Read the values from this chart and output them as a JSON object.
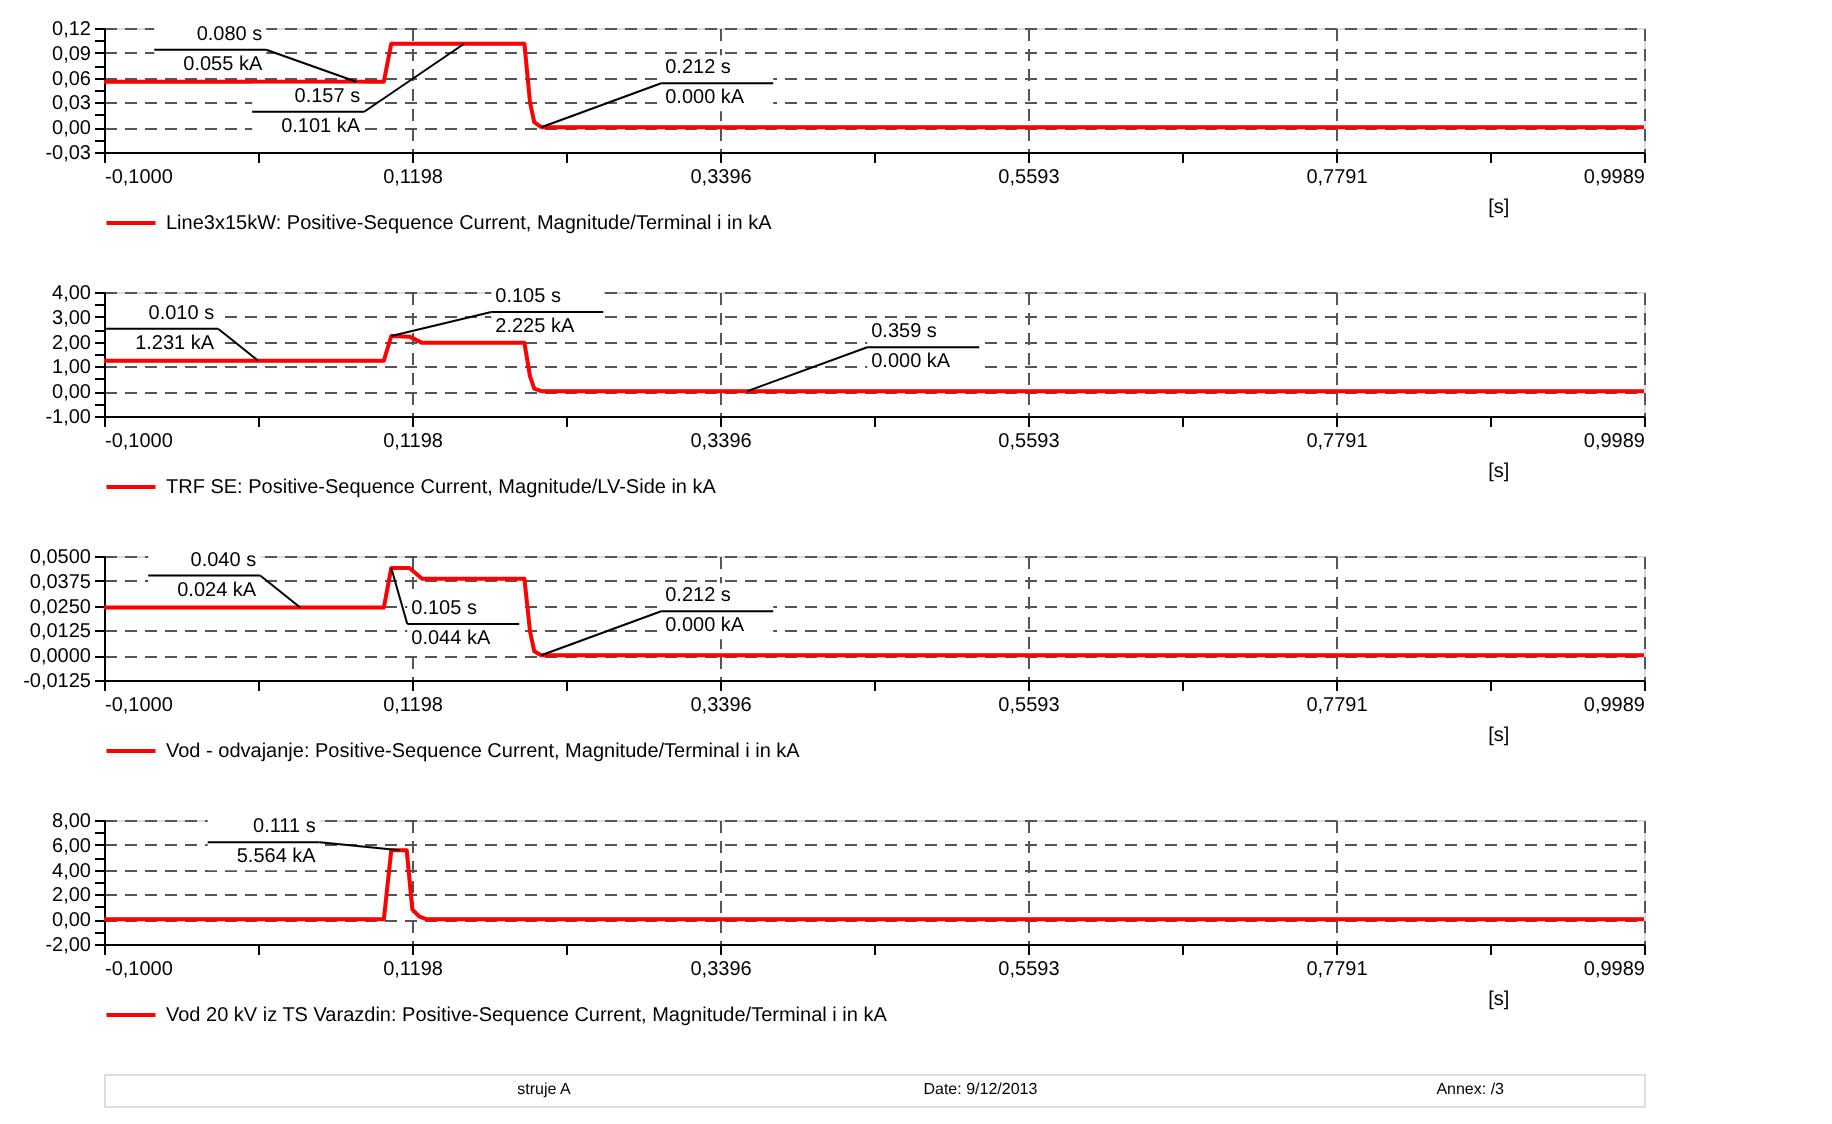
{
  "chart_data": [
    {
      "type": "line",
      "x": [
        -0.1,
        0.0997,
        0.105,
        0.2,
        0.204,
        0.207,
        0.212,
        0.9989
      ],
      "series": [
        {
          "name": "Line3x15kW: Positive-Sequence Current, Magnitude/Terminal i in kA",
          "color": "#ff0000",
          "values": [
            0.055,
            0.055,
            0.101,
            0.101,
            0.03,
            0.006,
            0,
            0
          ]
        }
      ],
      "xlabel": "[s]",
      "xlim": [
        -0.1,
        0.9989
      ],
      "xticks": [
        {
          "value": -0.1,
          "label": "-0,1000"
        },
        {
          "value": 0.0099,
          "label": null
        },
        {
          "value": 0.1198,
          "label": "0,1198"
        },
        {
          "value": 0.2297,
          "label": null
        },
        {
          "value": 0.3396,
          "label": "0,3396"
        },
        {
          "value": 0.44945,
          "label": null
        },
        {
          "value": 0.5593,
          "label": "0,5593"
        },
        {
          "value": 0.6692,
          "label": null
        },
        {
          "value": 0.7791,
          "label": "0,7791"
        },
        {
          "value": 0.889,
          "label": null
        },
        {
          "value": 0.9989,
          "label": "0,9989"
        }
      ],
      "ylim": [
        -0.03,
        0.12
      ],
      "yticks": [
        {
          "value": -0.03,
          "label": "-0,03"
        },
        {
          "value": -0.015,
          "label": null
        },
        {
          "value": 0,
          "label": "0,00"
        },
        {
          "value": 0.015,
          "label": null
        },
        {
          "value": 0.03,
          "label": "0,03"
        },
        {
          "value": 0.045,
          "label": null
        },
        {
          "value": 0.06,
          "label": "0,06"
        },
        {
          "value": 0.075,
          "label": null
        },
        {
          "value": 0.09,
          "label": "0,09"
        },
        {
          "value": 0.105,
          "label": null
        },
        {
          "value": 0.12,
          "label": "0,12"
        }
      ],
      "annotations": [
        {
          "text": "0.080 s\n0.055 kA",
          "x": 0.08,
          "y": 0.055
        },
        {
          "text": "0.157 s\n0.101 kA",
          "x": 0.157,
          "y": 0.101
        },
        {
          "text": "0.212 s\n0.000 kA",
          "x": 0.212,
          "y": 0
        }
      ],
      "grid": true,
      "legend": "bottom left",
      "line_style": "solid"
    },
    {
      "type": "line",
      "x": [
        -0.1,
        0.0997,
        0.105,
        0.118,
        0.127,
        0.2,
        0.204,
        0.207,
        0.212,
        0.9989
      ],
      "series": [
        {
          "name": "TRF SE: Positive-Sequence Current, Magnitude/LV-Side in kA",
          "color": "#ff0000",
          "values": [
            1.231,
            1.231,
            2.225,
            2.2,
            1.95,
            1.95,
            0.6,
            0.1,
            0,
            0
          ]
        }
      ],
      "xlabel": "[s]",
      "xlim": [
        -0.1,
        0.9989
      ],
      "xticks": [
        {
          "value": -0.1,
          "label": "-0,1000"
        },
        {
          "value": 0.0099,
          "label": null
        },
        {
          "value": 0.1198,
          "label": "0,1198"
        },
        {
          "value": 0.2297,
          "label": null
        },
        {
          "value": 0.3396,
          "label": "0,3396"
        },
        {
          "value": 0.44945,
          "label": null
        },
        {
          "value": 0.5593,
          "label": "0,5593"
        },
        {
          "value": 0.6692,
          "label": null
        },
        {
          "value": 0.7791,
          "label": "0,7791"
        },
        {
          "value": 0.889,
          "label": null
        },
        {
          "value": 0.9989,
          "label": "0,9989"
        }
      ],
      "ylim": [
        -1,
        4
      ],
      "yticks": [
        {
          "value": -1,
          "label": "-1,00"
        },
        {
          "value": -0.5,
          "label": null
        },
        {
          "value": 0,
          "label": "0,00"
        },
        {
          "value": 0.5,
          "label": null
        },
        {
          "value": 1,
          "label": "1,00"
        },
        {
          "value": 1.5,
          "label": null
        },
        {
          "value": 2,
          "label": "2,00"
        },
        {
          "value": 2.5,
          "label": null
        },
        {
          "value": 3,
          "label": "3,00"
        },
        {
          "value": 3.5,
          "label": null
        },
        {
          "value": 4,
          "label": "4,00"
        }
      ],
      "annotations": [
        {
          "text": "0.010 s\n1.231 kA",
          "x": 0.01,
          "y": 1.231
        },
        {
          "text": "0.105 s\n2.225 kA",
          "x": 0.105,
          "y": 2.225
        },
        {
          "text": "0.359 s\n0.000 kA",
          "x": 0.359,
          "y": 0
        }
      ],
      "grid": true,
      "legend": "bottom left",
      "line_style": "solid"
    },
    {
      "type": "line",
      "x": [
        -0.1,
        0.0997,
        0.105,
        0.118,
        0.127,
        0.2,
        0.204,
        0.207,
        0.212,
        0.9989
      ],
      "series": [
        {
          "name": "Vod - odvajanje: Positive-Sequence Current, Magnitude/Terminal i in kA",
          "color": "#ff0000",
          "values": [
            0.024,
            0.024,
            0.044,
            0.044,
            0.0385,
            0.0385,
            0.012,
            0.002,
            0,
            0
          ]
        }
      ],
      "xlabel": "[s]",
      "xlim": [
        -0.1,
        0.9989
      ],
      "xticks": [
        {
          "value": -0.1,
          "label": "-0,1000"
        },
        {
          "value": 0.0099,
          "label": null
        },
        {
          "value": 0.1198,
          "label": "0,1198"
        },
        {
          "value": 0.2297,
          "label": null
        },
        {
          "value": 0.3396,
          "label": "0,3396"
        },
        {
          "value": 0.44945,
          "label": null
        },
        {
          "value": 0.5593,
          "label": "0,5593"
        },
        {
          "value": 0.6692,
          "label": null
        },
        {
          "value": 0.7791,
          "label": "0,7791"
        },
        {
          "value": 0.889,
          "label": null
        },
        {
          "value": 0.9989,
          "label": "0,9989"
        }
      ],
      "ylim": [
        -0.0125,
        0.05
      ],
      "yticks": [
        {
          "value": -0.0125,
          "label": "-0,0125"
        },
        {
          "value": 0,
          "label": "0,0000"
        },
        {
          "value": 0.0125,
          "label": "0,0125"
        },
        {
          "value": 0.025,
          "label": "0,0250"
        },
        {
          "value": 0.0375,
          "label": "0,0375"
        },
        {
          "value": 0.05,
          "label": "0,0500"
        }
      ],
      "annotations": [
        {
          "text": "0.040 s\n0.024 kA",
          "x": 0.04,
          "y": 0.024
        },
        {
          "text": "0.105 s\n0.044 kA",
          "x": 0.105,
          "y": 0.044
        },
        {
          "text": "0.212 s\n0.000 kA",
          "x": 0.212,
          "y": 0
        }
      ],
      "grid": true,
      "legend": "bottom left",
      "line_style": "solid"
    },
    {
      "type": "line",
      "x": [
        -0.1,
        0.0997,
        0.105,
        0.116,
        0.12,
        0.125,
        0.13,
        0.9989
      ],
      "series": [
        {
          "name": "Vod 20 kV iz TS Varazdin: Positive-Sequence Current, Magnitude/Terminal i in kA",
          "color": "#ff0000",
          "values": [
            0,
            0,
            5.564,
            5.564,
            0.8,
            0.2,
            0,
            0
          ]
        }
      ],
      "xlabel": "[s]",
      "xlim": [
        -0.1,
        0.9989
      ],
      "xticks": [
        {
          "value": -0.1,
          "label": "-0,1000"
        },
        {
          "value": 0.0099,
          "label": null
        },
        {
          "value": 0.1198,
          "label": "0,1198"
        },
        {
          "value": 0.2297,
          "label": null
        },
        {
          "value": 0.3396,
          "label": "0,3396"
        },
        {
          "value": 0.44945,
          "label": null
        },
        {
          "value": 0.5593,
          "label": "0,5593"
        },
        {
          "value": 0.6692,
          "label": null
        },
        {
          "value": 0.7791,
          "label": "0,7791"
        },
        {
          "value": 0.889,
          "label": null
        },
        {
          "value": 0.9989,
          "label": "0,9989"
        }
      ],
      "ylim": [
        -2,
        8
      ],
      "yticks": [
        {
          "value": -2,
          "label": "-2,00"
        },
        {
          "value": -1,
          "label": null
        },
        {
          "value": 0,
          "label": "0,00"
        },
        {
          "value": 1,
          "label": null
        },
        {
          "value": 2,
          "label": "2,00"
        },
        {
          "value": 3,
          "label": null
        },
        {
          "value": 4,
          "label": "4,00"
        },
        {
          "value": 5,
          "label": null
        },
        {
          "value": 6,
          "label": "6,00"
        },
        {
          "value": 7,
          "label": null
        },
        {
          "value": 8,
          "label": "8,00"
        }
      ],
      "annotations": [
        {
          "text": "0.111 s\n5.564 kA",
          "x": 0.111,
          "y": 5.564
        }
      ],
      "grid": true,
      "legend": "bottom left",
      "line_style": "solid"
    },
    {
      "type": "other",
      "annotations": [
        "struje A",
        "Date:  9/12/2013",
        "Annex:  /3"
      ]
    }
  ]
}
